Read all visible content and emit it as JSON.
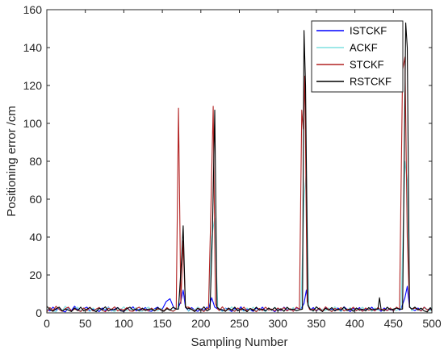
{
  "chart_data": {
    "type": "line",
    "title": "",
    "xlabel": "Sampling Number",
    "ylabel": "Positioning error /cm",
    "xlim": [
      0,
      500
    ],
    "ylim": [
      0,
      160
    ],
    "xticks": [
      0,
      50,
      100,
      150,
      200,
      250,
      300,
      350,
      400,
      450,
      500
    ],
    "yticks": [
      0,
      20,
      40,
      60,
      80,
      100,
      120,
      140,
      160
    ],
    "grid": false,
    "legend_position": "top-right",
    "baseline": {
      "x": [
        0,
        4,
        8,
        12,
        16,
        20,
        24,
        28,
        32,
        36,
        40,
        44,
        48,
        52,
        56,
        60,
        64,
        68,
        72,
        76,
        80,
        84,
        88,
        92,
        96,
        100,
        104,
        108,
        112,
        116,
        120,
        124,
        128,
        132,
        136,
        140,
        144,
        148,
        152,
        156,
        160,
        164,
        168,
        180,
        184,
        188,
        192,
        196,
        200,
        204,
        208,
        224,
        228,
        232,
        236,
        240,
        244,
        248,
        252,
        256,
        260,
        264,
        268,
        272,
        276,
        280,
        284,
        288,
        292,
        296,
        300,
        304,
        308,
        312,
        316,
        320,
        324,
        342,
        346,
        350,
        354,
        358,
        362,
        366,
        370,
        374,
        378,
        382,
        386,
        390,
        394,
        398,
        402,
        406,
        410,
        414,
        418,
        422,
        426,
        430,
        434,
        438,
        442,
        446,
        450,
        454,
        458,
        474,
        478,
        482,
        486,
        490,
        494,
        498,
        500
      ],
      "y": [
        2.0,
        1.0,
        3.0,
        1.5,
        2.5,
        1.0,
        0.5,
        2.8,
        1.2,
        3.5,
        1.8,
        0.8,
        2.2,
        3.0,
        1.0,
        2.0,
        1.5,
        0.7,
        2.6,
        1.2,
        3.0,
        1.0,
        2.0,
        2.8,
        1.4,
        0.6,
        2.4,
        1.8,
        3.2,
        1.0,
        2.0,
        1.5,
        2.8,
        1.0,
        0.8,
        2.2,
        3.0,
        1.5,
        2.0,
        1.0,
        2.5,
        1.2,
        2.0,
        2.0,
        1.0,
        2.8,
        1.5,
        0.8,
        2.2,
        1.4,
        3.0,
        2.0,
        1.0,
        2.5,
        1.8,
        0.7,
        2.4,
        1.2,
        3.2,
        1.0,
        2.0,
        1.6,
        0.8,
        2.6,
        1.4,
        3.0,
        1.0,
        2.2,
        1.8,
        0.6,
        2.4,
        1.2,
        3.0,
        1.5,
        2.0,
        1.0,
        2.6,
        1.5,
        2.8,
        1.0,
        2.2,
        0.8,
        3.0,
        1.6,
        2.0,
        1.2,
        2.6,
        1.0,
        3.2,
        1.8,
        0.7,
        2.4,
        1.4,
        2.8,
        1.0,
        2.0,
        1.6,
        3.0,
        1.2,
        2.2,
        0.8,
        2.6,
        1.4,
        2.0,
        1.0,
        2.8,
        1.5,
        2.0,
        1.2,
        2.6,
        1.0,
        3.0,
        1.6,
        2.0,
        2.5
      ]
    },
    "series": [
      {
        "name": "ISTCKF",
        "color": "#0000ff",
        "spikes": [
          {
            "x": [
              150,
              155,
              160,
              165
            ],
            "y": [
              2.0,
              6.0,
              7.5,
              2.5
            ]
          },
          {
            "x": [
              170,
              174,
              177,
              180
            ],
            "y": [
              2.0,
              6.0,
              12.0,
              3.0
            ]
          },
          {
            "x": [
              210,
              214,
              218,
              222
            ],
            "y": [
              2.0,
              8.0,
              3.0,
              2.0
            ]
          },
          {
            "x": [
              330,
              334,
              337,
              340
            ],
            "y": [
              2.0,
              5.0,
              12.0,
              3.0
            ]
          },
          {
            "x": [
              460,
              465,
              468,
              471
            ],
            "y": [
              2.0,
              8.0,
              14.0,
              3.0
            ]
          }
        ]
      },
      {
        "name": "ACKF",
        "color": "#7fe0e0",
        "spikes": [
          {
            "x": [
              170,
              174,
              177,
              180
            ],
            "y": [
              2.0,
              15.0,
              35.0,
              4.0
            ]
          },
          {
            "x": [
              210,
              214,
              218,
              222
            ],
            "y": [
              2.0,
              40.0,
              50.0,
              3.0
            ]
          },
          {
            "x": [
              330,
              334,
              337,
              340
            ],
            "y": [
              2.0,
              60.0,
              75.0,
              4.0
            ]
          },
          {
            "x": [
              460,
              465,
              468,
              471
            ],
            "y": [
              2.0,
              80.0,
              70.0,
              4.0
            ]
          }
        ]
      },
      {
        "name": "STCKF",
        "color": "#b22222",
        "spikes": [
          {
            "x": [
              168,
              171,
              174,
              177,
              180
            ],
            "y": [
              2.0,
              108.0,
              5.0,
              38.0,
              3.0
            ]
          },
          {
            "x": [
              210,
              213,
              216,
              219,
              222
            ],
            "y": [
              2.0,
              54.0,
              109.0,
              5.0,
              2.0
            ]
          },
          {
            "x": [
              328,
              331,
              333,
              335,
              338,
              341
            ],
            "y": [
              2.0,
              107.0,
              97.0,
              125.0,
              6.0,
              2.0
            ]
          },
          {
            "x": [
              458,
              462,
              465,
              468,
              471
            ],
            "y": [
              2.0,
              128.0,
              135.0,
              40.0,
              3.0
            ]
          }
        ]
      },
      {
        "name": "RSTCKF",
        "color": "#000000",
        "spikes": [
          {
            "x": [
              171,
              175,
              177,
              180,
              183
            ],
            "y": [
              2.0,
              28.0,
              46.0,
              3.0,
              2.0
            ]
          },
          {
            "x": [
              212,
              215,
              218,
              221,
              224
            ],
            "y": [
              2.0,
              42.0,
              107.0,
              3.0,
              2.0
            ]
          },
          {
            "x": [
              332,
              334,
              336,
              339,
              342
            ],
            "y": [
              2.0,
              149.0,
              120.0,
              4.0,
              2.0
            ]
          },
          {
            "x": [
              430,
              432,
              434
            ],
            "y": [
              2.0,
              8.0,
              2.0
            ]
          },
          {
            "x": [
              462,
              466,
              468,
              471,
              474
            ],
            "y": [
              2.0,
              153.0,
              140.0,
              3.0,
              2.0
            ]
          }
        ]
      }
    ]
  }
}
